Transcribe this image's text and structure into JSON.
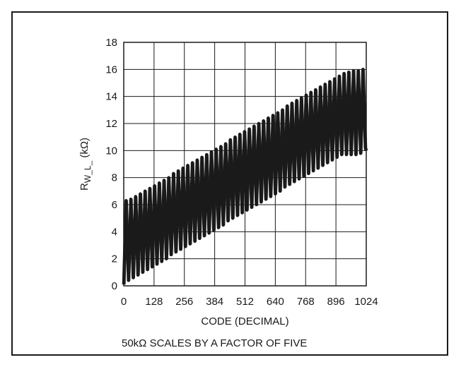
{
  "chart_data": {
    "type": "line",
    "title": "",
    "xlabel": "CODE (DECIMAL)",
    "ylabel_main": "R",
    "ylabel_sub": "W_L_",
    "ylabel_unit": " (kΩ)",
    "xlim": [
      0,
      1024
    ],
    "ylim": [
      0,
      18
    ],
    "x_ticks": [
      0,
      128,
      256,
      384,
      512,
      640,
      768,
      896,
      1024
    ],
    "y_ticks": [
      0,
      2,
      4,
      6,
      8,
      10,
      12,
      14,
      16,
      18
    ],
    "grid": true,
    "note": "50kΩ SCALES BY A FACTOR OF FIVE",
    "series": [
      {
        "x": [
          0,
          10,
          20,
          30,
          40,
          50,
          60,
          70,
          80,
          90,
          100,
          110,
          120,
          130,
          140,
          150,
          160,
          170,
          180,
          190,
          200,
          210,
          220,
          230,
          240,
          250,
          260,
          270,
          280,
          290,
          300,
          310,
          320,
          330,
          340,
          350,
          360,
          370,
          380,
          390,
          400,
          410,
          420,
          430,
          440,
          450,
          460,
          470,
          480,
          490,
          500,
          510,
          520,
          530,
          540,
          550,
          560,
          570,
          580,
          590,
          600,
          610,
          620,
          630,
          640,
          650,
          660,
          670,
          680,
          690,
          700,
          710,
          720,
          730,
          740,
          750,
          760,
          770,
          780,
          790,
          800,
          810,
          820,
          830,
          840,
          850,
          860,
          870,
          880,
          890,
          900,
          910,
          920,
          930,
          940,
          950,
          960,
          970,
          980,
          990,
          1000,
          1010,
          1020,
          1023
        ],
        "y": [
          0.1,
          6.3,
          0.4,
          6.4,
          0.6,
          6.6,
          0.8,
          6.8,
          1.0,
          7.0,
          1.2,
          7.2,
          1.4,
          7.4,
          1.6,
          7.6,
          1.8,
          7.8,
          2.0,
          8.0,
          2.3,
          8.3,
          2.5,
          8.5,
          2.7,
          8.7,
          2.9,
          8.9,
          3.1,
          9.1,
          3.3,
          9.3,
          3.5,
          9.5,
          3.7,
          9.7,
          3.9,
          9.9,
          4.1,
          10.1,
          4.3,
          10.3,
          4.5,
          10.5,
          4.8,
          10.8,
          5.0,
          11.0,
          5.2,
          11.2,
          5.4,
          11.4,
          5.6,
          11.6,
          5.8,
          11.8,
          6.0,
          12.0,
          6.2,
          12.2,
          6.4,
          12.4,
          6.6,
          12.6,
          6.8,
          12.8,
          7.0,
          13.0,
          7.3,
          13.3,
          7.5,
          13.5,
          7.7,
          13.7,
          7.9,
          13.9,
          8.1,
          14.1,
          8.3,
          14.3,
          8.5,
          14.5,
          8.7,
          14.7,
          8.9,
          14.9,
          9.1,
          15.1,
          9.3,
          15.3,
          9.5,
          15.5,
          9.7,
          15.7,
          9.7,
          15.8,
          9.7,
          15.9,
          9.7,
          15.9,
          9.8,
          16.0,
          10.2,
          10.0
        ]
      }
    ]
  }
}
